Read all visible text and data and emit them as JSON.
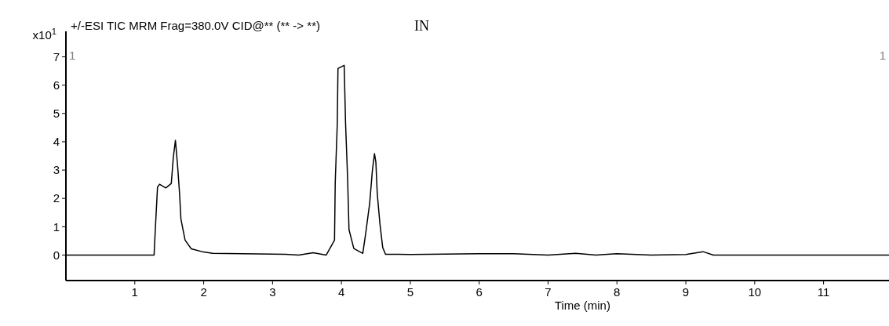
{
  "chart_data": {
    "type": "line",
    "title": "+/-ESI TIC MRM Frag=380.0V CID@** (** -> **)",
    "xlabel": "Time (min)",
    "ylabel": "x10$^{1}$",
    "annotations": [
      "IN",
      "1",
      "1"
    ],
    "xlim": [
      0,
      11.95
    ],
    "ylim": [
      -0.9,
      7.9
    ],
    "xticks": [
      1,
      2,
      3,
      4,
      5,
      6,
      7,
      8,
      9,
      10,
      11
    ],
    "yticks": [
      0,
      1,
      2,
      3,
      4,
      5,
      6,
      7
    ],
    "marker": "none",
    "line_style": "solid",
    "series": [
      {
        "color": "#000000",
        "x": [
          0,
          1.28,
          1.3,
          1.33,
          1.36,
          1.45,
          1.53,
          1.56,
          1.59,
          1.62,
          1.65,
          1.67,
          1.73,
          1.82,
          1.98,
          2.13,
          3.19,
          3.38,
          3.59,
          3.78,
          3.9,
          3.91,
          3.94,
          3.95,
          4.04,
          4.06,
          4.09,
          4.11,
          4.18,
          4.31,
          4.35,
          4.41,
          4.45,
          4.48,
          4.5,
          4.52,
          4.56,
          4.6,
          4.64,
          5.0,
          6.0,
          6.5,
          7.0,
          7.4,
          7.7,
          8.0,
          8.5,
          9.0,
          9.25,
          9.4,
          10.0,
          11.95
        ],
        "values": [
          0,
          0,
          1.0,
          2.4,
          2.5,
          2.37,
          2.53,
          3.47,
          4.05,
          3.2,
          2.18,
          1.27,
          0.53,
          0.22,
          0.12,
          0.06,
          0.03,
          0.0,
          0.08,
          0.0,
          0.53,
          2.55,
          4.65,
          6.59,
          6.7,
          4.66,
          2.7,
          0.9,
          0.23,
          0.06,
          0.72,
          1.82,
          3.0,
          3.58,
          3.29,
          2.18,
          1.08,
          0.26,
          0.03,
          0.02,
          0.05,
          0.05,
          0.0,
          0.06,
          0.0,
          0.05,
          0.0,
          0.02,
          0.12,
          0.0,
          0.0,
          0.0
        ]
      }
    ]
  }
}
